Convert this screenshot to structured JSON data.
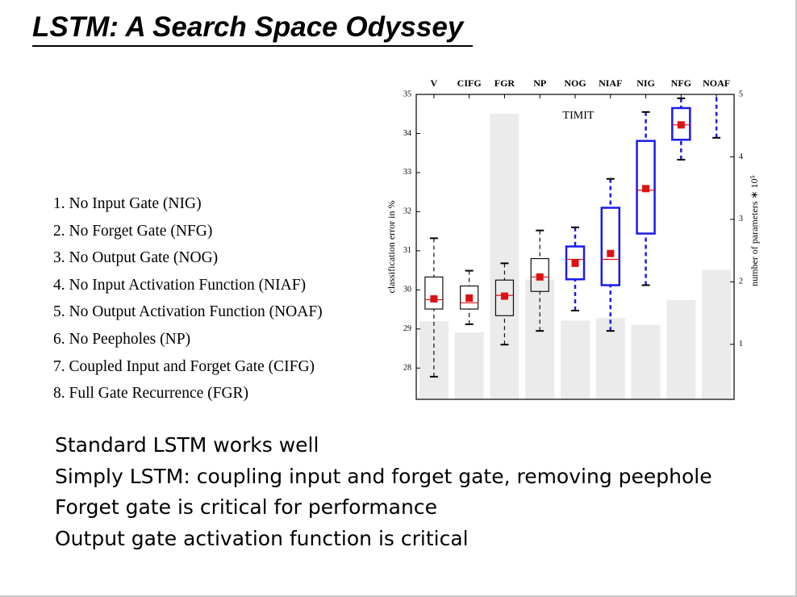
{
  "header": {
    "title": "LSTM: A Search Space Odyssey"
  },
  "variants": [
    "1. No Input Gate (NIG)",
    "2. No Forget Gate (NFG)",
    "3. No Output Gate (NOG)",
    "4. No Input Activation Function (NIAF)",
    "5. No Output Activation Function (NOAF)",
    "6. No Peepholes (NP)",
    "7. Coupled Input and Forget Gate (CIFG)",
    "8. Full Gate Recurrence (FGR)"
  ],
  "notes": [
    "Standard LSTM works well",
    "Simply LSTM: coupling input and forget gate, removing peephole",
    "Forget gate is critical for performance",
    "Output gate activation function is critical"
  ],
  "chart_data": {
    "type": "box",
    "annotation": "TIMIT",
    "ylabel": "classification error in %",
    "y2label": "number of parameters ∗ 10⁵",
    "categories": [
      "V",
      "CIFG",
      "FGR",
      "NP",
      "NOG",
      "NIAF",
      "NIG",
      "NFG",
      "NOAF"
    ],
    "box_colors": [
      "#111111",
      "#111111",
      "#111111",
      "#111111",
      "#1a1aee",
      "#1a1aee",
      "#1a1aee",
      "#1a1aee",
      "#1a1aee"
    ],
    "whisker_high": [
      31.32,
      30.49,
      30.68,
      31.52,
      31.6,
      32.84,
      34.55,
      34.9,
      35
    ],
    "q3": [
      30.33,
      30.1,
      30.25,
      30.8,
      31.11,
      32.1,
      33.81,
      34.65,
      null
    ],
    "median": [
      29.75,
      29.67,
      29.86,
      30.33,
      30.78,
      30.78,
      32.55,
      34.22,
      null
    ],
    "q1": [
      29.51,
      29.51,
      29.34,
      29.96,
      30.27,
      30.12,
      31.44,
      33.84,
      null
    ],
    "whisker_low": [
      27.78,
      29.12,
      28.6,
      28.95,
      29.47,
      28.95,
      30.12,
      33.33,
      33.89
    ],
    "mean": [
      29.77,
      29.79,
      29.84,
      30.33,
      30.68,
      30.93,
      32.59,
      34.22,
      null
    ],
    "mean_color": "#dd1111",
    "median_color": "#dd1111",
    "bars": {
      "values": [
        1.37,
        1.19,
        4.69,
        2.04,
        1.38,
        1.42,
        1.31,
        1.71,
        2.19
      ],
      "color": "#ebebeb",
      "axis": "y2"
    },
    "ylim": [
      27.2,
      35
    ],
    "yticks": [
      28,
      29,
      30,
      31,
      32,
      33,
      34,
      35
    ],
    "y2lim": [
      0.12,
      5
    ],
    "y2ticks": [
      1,
      2,
      3,
      4,
      5
    ]
  }
}
